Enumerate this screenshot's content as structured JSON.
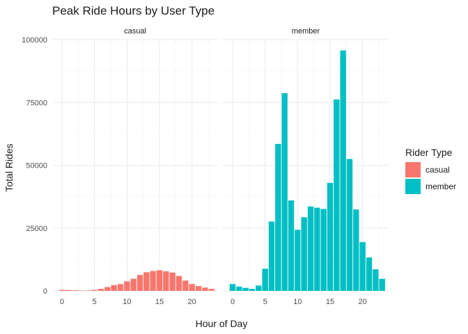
{
  "chart_data": {
    "type": "bar",
    "title": "Peak Ride Hours by User Type",
    "xlabel": "Hour of Day",
    "ylabel": "Total Rides",
    "xlim": [
      -1.5,
      24
    ],
    "ylim": [
      0,
      100000
    ],
    "x_ticks": [
      0,
      5,
      10,
      15,
      20
    ],
    "y_ticks": [
      0,
      25000,
      50000,
      75000,
      100000
    ],
    "legend": {
      "title": "Rider Type",
      "position": "right"
    },
    "grid": true,
    "x": [
      0,
      1,
      2,
      3,
      4,
      5,
      6,
      7,
      8,
      9,
      10,
      11,
      12,
      13,
      14,
      15,
      16,
      17,
      18,
      19,
      20,
      21,
      22,
      23
    ],
    "series": [
      {
        "name": "casual",
        "color": "#F8766D",
        "values": [
          400,
          350,
          250,
          150,
          200,
          400,
          800,
          1500,
          2300,
          2700,
          3800,
          4800,
          6300,
          7400,
          7900,
          8200,
          7800,
          7300,
          5900,
          4100,
          2700,
          1900,
          1300,
          800
        ]
      },
      {
        "name": "member",
        "color": "#00BFC4",
        "values": [
          2700,
          1700,
          1200,
          800,
          2100,
          8800,
          27600,
          58500,
          78700,
          36000,
          24300,
          29300,
          33600,
          33100,
          32600,
          43000,
          76200,
          95700,
          52500,
          32400,
          19400,
          13300,
          8600,
          4800
        ]
      }
    ]
  }
}
